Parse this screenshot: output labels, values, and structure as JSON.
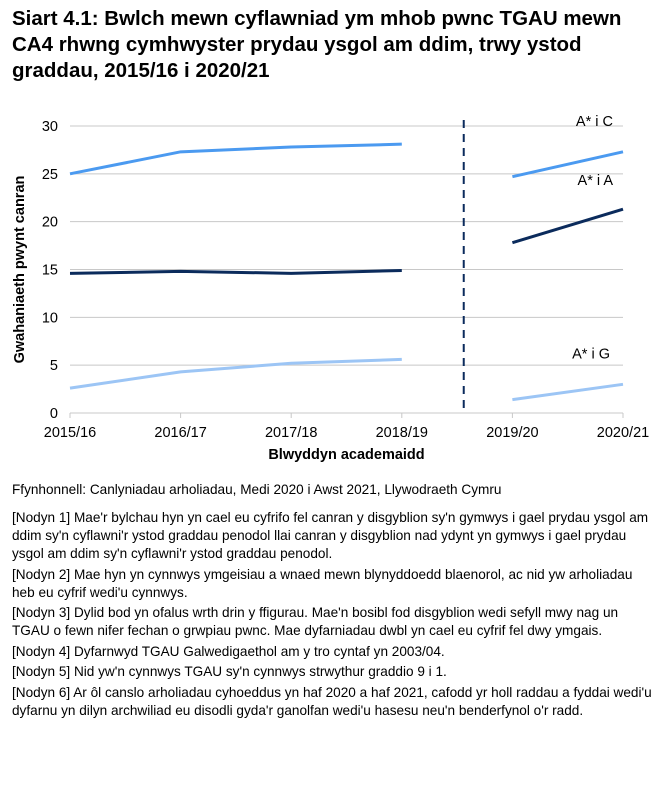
{
  "title": "Siart 4.1: Bwlch mewn cyflawniad ym mhob pwnc TGAU mewn CA4 rhwng cymhwyster prydau ysgol am ddim, trwy ystod graddau, 2015/16 i 2020/21",
  "chart_data": {
    "type": "line",
    "title": "Siart 4.1: Bwlch mewn cyflawniad ym mhob pwnc TGAU mewn CA4 rhwng cymhwyster prydau ysgol am ddim, trwy ystod graddau, 2015/16 i 2020/21",
    "xlabel": "Blwyddyn academaidd",
    "ylabel": "Gwahaniaeth pwynt canran",
    "categories": [
      "2015/16",
      "2016/17",
      "2017/18",
      "2018/19",
      "2019/20",
      "2020/21"
    ],
    "ylim": [
      0,
      30
    ],
    "yticks": [
      0,
      5,
      10,
      15,
      20,
      25,
      30
    ],
    "grid": true,
    "break_between": [
      "2018/19",
      "2019/20"
    ],
    "series": [
      {
        "name": "A* i C",
        "color": "#4B9AF0",
        "values": [
          25.0,
          27.3,
          27.8,
          28.1,
          24.7,
          27.3
        ]
      },
      {
        "name": "A* i A",
        "color": "#0B2B5C",
        "values": [
          14.6,
          14.8,
          14.6,
          14.9,
          17.8,
          21.3
        ]
      },
      {
        "name": "A* i G",
        "color": "#9CC5F5",
        "values": [
          2.6,
          4.3,
          5.2,
          5.6,
          1.4,
          3.0
        ]
      }
    ]
  },
  "source": "Ffynhonnell: Canlyniadau arholiadau, Medi 2020 i Awst 2021, Llywodraeth Cymru",
  "notes": [
    "[Nodyn 1] Mae'r bylchau hyn yn cael eu cyfrifo fel canran y disgyblion sy'n gymwys i gael prydau ysgol am ddim sy'n cyflawni'r ystod graddau penodol llai canran y disgyblion nad ydynt yn gymwys i gael prydau ysgol am ddim sy'n cyflawni'r ystod graddau penodol.",
    "[Nodyn 2] Mae hyn yn cynnwys ymgeisiau a wnaed mewn blynyddoedd blaenorol, ac nid yw arholiadau heb eu cyfrif wedi'u cynnwys.",
    "[Nodyn 3] Dylid bod yn ofalus wrth drin y ffigurau. Mae'n bosibl fod disgyblion wedi sefyll mwy nag un TGAU o fewn nifer fechan o grwpiau pwnc. Mae dyfarniadau dwbl yn cael eu cyfrif fel dwy ymgais.",
    "[Nodyn 4] Dyfarnwyd TGAU Galwedigaethol am y tro cyntaf yn 2003/04.",
    "[Nodyn 5] Nid yw'n cynnwys TGAU sy'n cynnwys strwythur graddio 9 i 1.",
    "[Nodyn 6] Ar ôl canslo arholiadau cyhoeddus yn haf 2020 a haf 2021, cafodd yr holl raddau a fyddai wedi'u dyfarnu yn dilyn archwiliad eu disodli gyda'r ganolfan wedi'u hasesu neu'n benderfynol o'r radd."
  ]
}
